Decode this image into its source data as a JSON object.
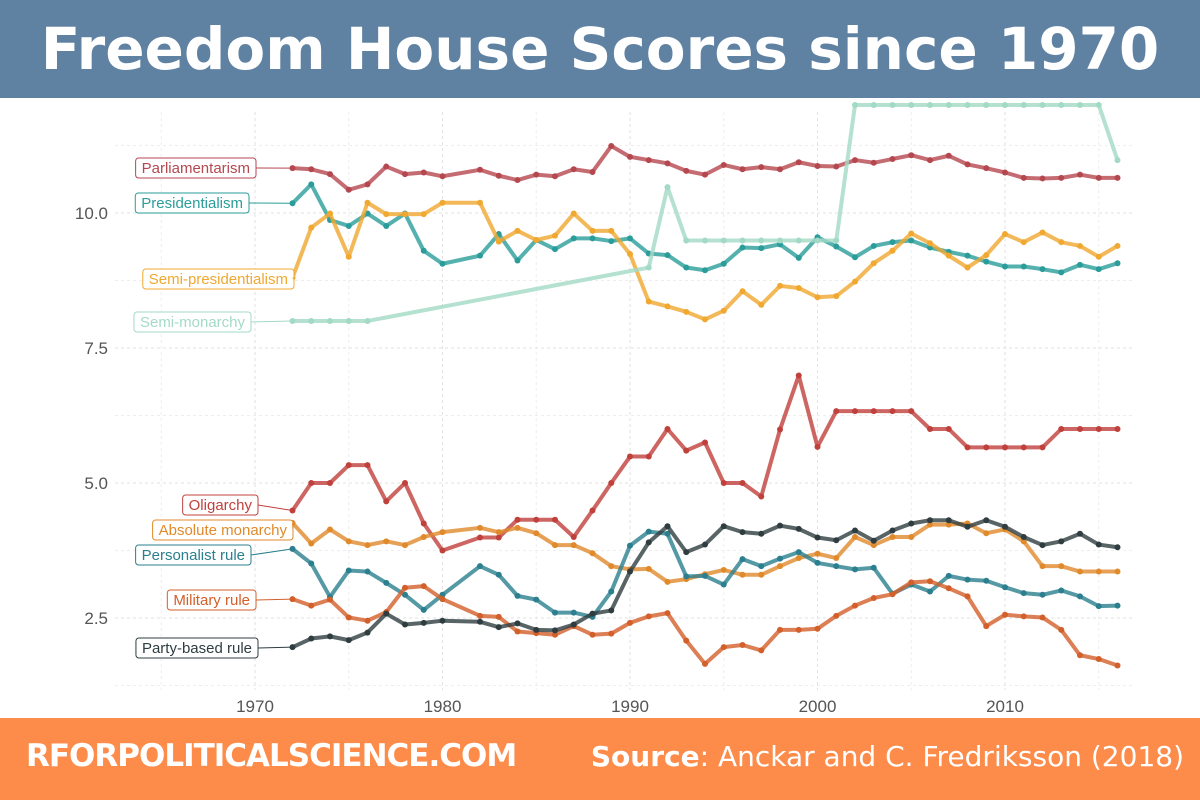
{
  "header": {
    "title": "Freedom House Scores since 1970"
  },
  "footer": {
    "site": "RFORPOLITICALSCIENCE.COM",
    "source_label": "Source",
    "source_text": ": Anckar and C. Fredriksson (2018)"
  },
  "chart_data": {
    "type": "line",
    "title": "Freedom House Scores since 1970",
    "xlabel": "",
    "ylabel": "",
    "xlim": [
      1962,
      2018
    ],
    "ylim": [
      1.2,
      12.3
    ],
    "x_ticks": [
      1970,
      1980,
      1990,
      2000,
      2010
    ],
    "y_ticks": [
      2.5,
      5.0,
      7.5,
      10.0
    ],
    "y_tick_labels": [
      "2.5",
      "5.0",
      "7.5",
      "10.0"
    ],
    "grid": true,
    "legend": "direct labels at left",
    "x": [
      1972,
      1973,
      1974,
      1975,
      1976,
      1977,
      1978,
      1979,
      1980,
      1982,
      1983,
      1984,
      1985,
      1986,
      1987,
      1988,
      1989,
      1990,
      1991,
      1992,
      1993,
      1994,
      1995,
      1996,
      1997,
      1998,
      1999,
      2000,
      2001,
      2002,
      2003,
      2004,
      2005,
      2006,
      2007,
      2008,
      2009,
      2010,
      2011,
      2012,
      2013,
      2014,
      2015,
      2016
    ],
    "series": [
      {
        "name": "Parliamentarism",
        "color": "#b5474f",
        "values": [
          10.83,
          10.81,
          10.72,
          10.43,
          10.53,
          10.86,
          10.72,
          10.75,
          10.68,
          10.8,
          10.69,
          10.61,
          10.71,
          10.68,
          10.81,
          10.76,
          11.24,
          11.04,
          10.98,
          10.92,
          10.78,
          10.71,
          10.89,
          10.81,
          10.85,
          10.81,
          10.94,
          10.87,
          10.86,
          10.98,
          10.93,
          11.0,
          11.07,
          10.98,
          11.06,
          10.9,
          10.83,
          10.75,
          10.65,
          10.64,
          10.65,
          10.71,
          10.65,
          10.65
        ]
      },
      {
        "name": "Presidentialism",
        "color": "#2a9d9a",
        "values": [
          10.18,
          10.53,
          9.87,
          9.76,
          9.99,
          9.76,
          9.99,
          9.3,
          9.06,
          9.21,
          9.61,
          9.12,
          9.5,
          9.33,
          9.53,
          9.53,
          9.48,
          9.53,
          9.25,
          9.22,
          8.99,
          8.94,
          9.06,
          9.36,
          9.35,
          9.42,
          9.17,
          9.55,
          9.38,
          9.18,
          9.39,
          9.46,
          9.49,
          9.36,
          9.28,
          9.21,
          9.1,
          9.01,
          9.01,
          8.96,
          8.9,
          9.04,
          8.96,
          9.07
        ]
      },
      {
        "name": "Semi-presidentialism",
        "color": "#f0a830",
        "values": [
          8.8,
          9.73,
          9.99,
          9.19,
          10.19,
          9.98,
          9.98,
          9.98,
          10.19,
          10.19,
          9.47,
          9.67,
          9.5,
          9.58,
          9.99,
          9.67,
          9.67,
          9.24,
          8.36,
          8.27,
          8.17,
          8.03,
          8.19,
          8.55,
          8.3,
          8.65,
          8.61,
          8.44,
          8.46,
          8.73,
          9.07,
          9.3,
          9.62,
          9.44,
          9.21,
          8.99,
          9.22,
          9.61,
          9.46,
          9.64,
          9.46,
          9.39,
          9.19,
          9.39
        ]
      },
      {
        "name": "Semi-monarchy",
        "color": "#a3dac6",
        "values": [
          8.0,
          8.0,
          8.0,
          8.0,
          8.0,
          null,
          null,
          null,
          null,
          null,
          null,
          null,
          null,
          null,
          null,
          null,
          null,
          null,
          8.99,
          10.48,
          9.49,
          9.49,
          9.49,
          9.49,
          9.49,
          9.49,
          9.49,
          9.49,
          9.49,
          12.0,
          12.0,
          12.0,
          12.0,
          12.0,
          12.0,
          12.0,
          12.0,
          12.0,
          12.0,
          12.0,
          12.0,
          12.0,
          12.0,
          10.98
        ]
      },
      {
        "name": "Oligarchy",
        "color": "#c0403c",
        "values": [
          4.49,
          5.0,
          5.0,
          5.33,
          5.33,
          4.66,
          5.0,
          4.25,
          3.75,
          3.99,
          3.99,
          4.32,
          4.32,
          4.32,
          4.0,
          4.49,
          5.0,
          5.49,
          5.49,
          6.0,
          5.6,
          5.75,
          5.0,
          5.0,
          4.75,
          5.99,
          6.99,
          5.67,
          6.33,
          6.33,
          6.33,
          6.33,
          6.33,
          6.0,
          6.0,
          5.66,
          5.66,
          5.66,
          5.66,
          5.66,
          6.0,
          6.0,
          6.0,
          6.0
        ]
      },
      {
        "name": "Absolute monarchy",
        "color": "#e08a2c",
        "values": [
          4.26,
          3.88,
          4.14,
          3.92,
          3.85,
          3.92,
          3.85,
          4.0,
          4.09,
          4.17,
          4.09,
          4.17,
          4.07,
          3.85,
          3.85,
          3.7,
          3.46,
          3.4,
          3.41,
          3.17,
          3.22,
          3.31,
          3.39,
          3.3,
          3.3,
          3.46,
          3.61,
          3.69,
          3.61,
          4.0,
          3.85,
          4.0,
          4.0,
          4.23,
          4.23,
          4.25,
          4.07,
          4.14,
          3.92,
          3.46,
          3.46,
          3.36,
          3.36,
          3.36
        ]
      },
      {
        "name": "Personalist rule",
        "color": "#2b7f8e",
        "values": [
          3.78,
          3.51,
          2.89,
          3.38,
          3.36,
          3.15,
          2.93,
          2.65,
          2.93,
          3.46,
          3.3,
          2.91,
          2.84,
          2.6,
          2.6,
          2.52,
          2.99,
          3.84,
          4.1,
          4.06,
          3.27,
          3.28,
          3.12,
          3.59,
          3.46,
          3.6,
          3.72,
          3.52,
          3.46,
          3.4,
          3.43,
          2.95,
          3.12,
          2.99,
          3.28,
          3.21,
          3.19,
          3.07,
          2.96,
          2.93,
          3.01,
          2.9,
          2.72,
          2.73
        ]
      },
      {
        "name": "Military rule",
        "color": "#d35f2a",
        "values": [
          2.85,
          2.73,
          2.84,
          2.51,
          2.45,
          2.61,
          3.06,
          3.09,
          2.85,
          2.54,
          2.52,
          2.25,
          2.22,
          2.19,
          2.35,
          2.19,
          2.21,
          2.41,
          2.53,
          2.59,
          2.08,
          1.65,
          1.96,
          2.0,
          1.9,
          2.28,
          2.28,
          2.3,
          2.54,
          2.73,
          2.87,
          2.94,
          3.16,
          3.18,
          3.05,
          2.9,
          2.35,
          2.56,
          2.53,
          2.51,
          2.28,
          1.81,
          1.74,
          1.62
        ]
      },
      {
        "name": "Party-based rule",
        "color": "#2f3d40",
        "values": [
          1.96,
          2.12,
          2.16,
          2.09,
          2.23,
          2.58,
          2.38,
          2.41,
          2.45,
          2.43,
          2.33,
          2.4,
          2.28,
          2.27,
          2.38,
          2.58,
          2.64,
          3.36,
          3.9,
          4.2,
          3.72,
          3.86,
          4.2,
          4.09,
          4.06,
          4.21,
          4.15,
          3.99,
          3.94,
          4.12,
          3.93,
          4.12,
          4.25,
          4.31,
          4.31,
          4.19,
          4.31,
          4.19,
          4.0,
          3.85,
          3.92,
          4.06,
          3.86,
          3.81
        ]
      }
    ]
  }
}
